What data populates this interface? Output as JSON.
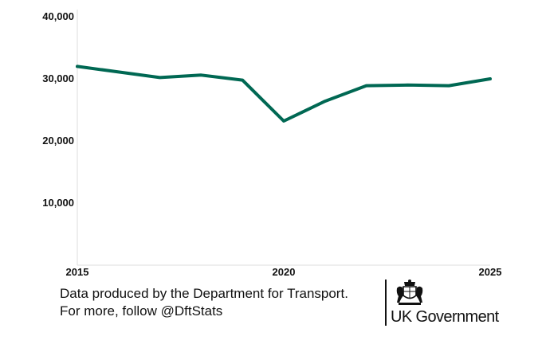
{
  "chart_data": {
    "type": "line",
    "title": "",
    "xlabel": "",
    "ylabel": "",
    "x": [
      2015,
      2016,
      2017,
      2018,
      2019,
      2020,
      2021,
      2022,
      2023,
      2024,
      2025
    ],
    "series": [
      {
        "values": [
          32000,
          31100,
          30200,
          30600,
          29800,
          23200,
          26400,
          28900,
          29000,
          28900,
          30000
        ]
      }
    ],
    "xlim": [
      2015,
      2025
    ],
    "ylim": [
      0,
      40000
    ],
    "x_ticks": [
      "2015",
      "2020",
      "2025"
    ],
    "y_ticks": [
      "10,000",
      "20,000",
      "30,000",
      "40,000"
    ],
    "y_tick_values": [
      10000,
      20000,
      30000,
      40000
    ],
    "x_tick_values": [
      2015,
      2020,
      2025
    ],
    "grid": false,
    "line_color": "#006853",
    "axis_color": "#dddddd"
  },
  "footer": {
    "line1": "Data produced by the Department for Transport.",
    "line2": "For more, follow @DftStats"
  },
  "logo": {
    "name": "UK Government",
    "icon": "royal-coat-of-arms-icon"
  }
}
